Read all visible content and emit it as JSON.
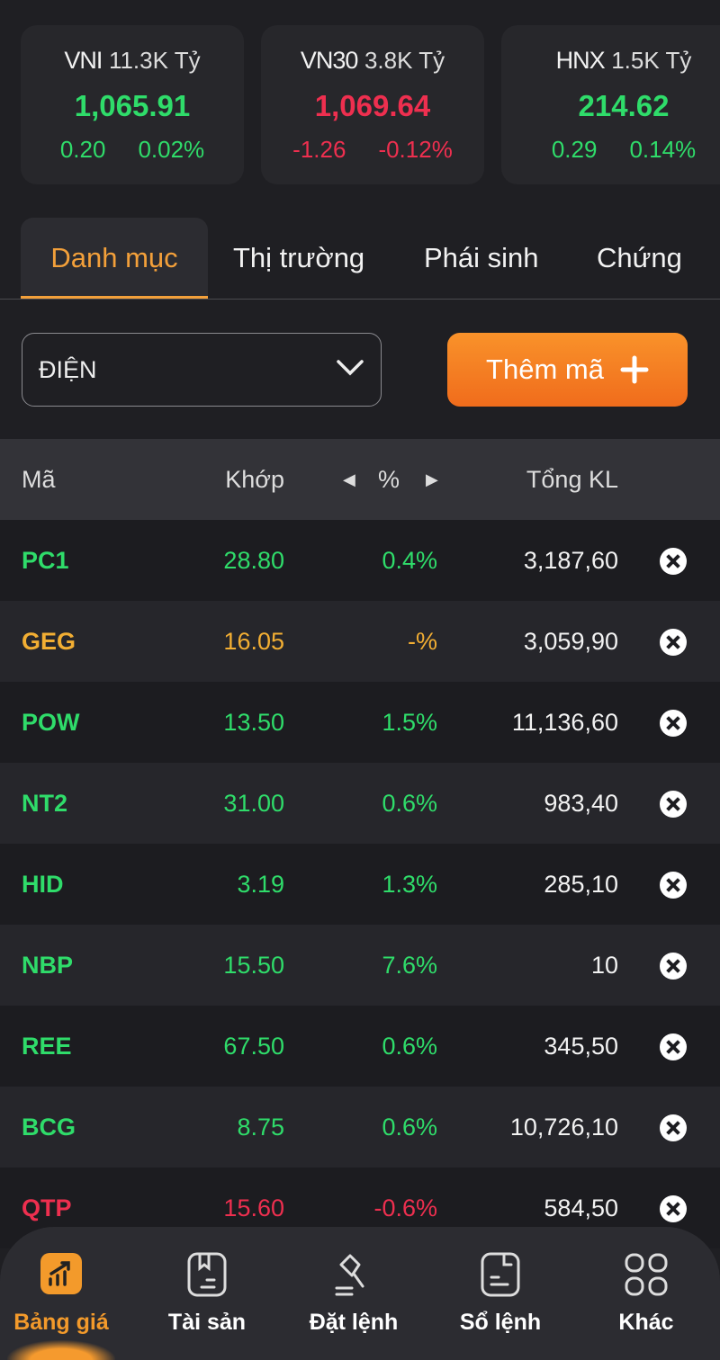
{
  "indices": [
    {
      "name": "VNI",
      "volume": "11.3K Tỷ",
      "value": "1,065.91",
      "change": "0.20",
      "percent": "0.02%",
      "trend": "up"
    },
    {
      "name": "VN30",
      "volume": "3.8K Tỷ",
      "value": "1,069.64",
      "change": "-1.26",
      "percent": "-0.12%",
      "trend": "down"
    },
    {
      "name": "HNX",
      "volume": "1.5K Tỷ",
      "value": "214.62",
      "change": "0.29",
      "percent": "0.14%",
      "trend": "up"
    }
  ],
  "tabs": [
    "Danh mục",
    "Thị trường",
    "Phái sinh",
    "Chứng"
  ],
  "watchlist_select": "ĐIỆN",
  "add_button": "Thêm mã",
  "table": {
    "headers": {
      "code": "Mã",
      "match": "Khớp",
      "percent": "%",
      "volume": "Tổng KL"
    },
    "rows": [
      {
        "code": "PC1",
        "match": "28.80",
        "percent": "0.4%",
        "volume": "3,187,60",
        "trend": "up"
      },
      {
        "code": "GEG",
        "match": "16.05",
        "percent": "-%",
        "volume": "3,059,90",
        "trend": "ref"
      },
      {
        "code": "POW",
        "match": "13.50",
        "percent": "1.5%",
        "volume": "11,136,60",
        "trend": "up"
      },
      {
        "code": "NT2",
        "match": "31.00",
        "percent": "0.6%",
        "volume": "983,40",
        "trend": "up"
      },
      {
        "code": "HID",
        "match": "3.19",
        "percent": "1.3%",
        "volume": "285,10",
        "trend": "up"
      },
      {
        "code": "NBP",
        "match": "15.50",
        "percent": "7.6%",
        "volume": "10",
        "trend": "up"
      },
      {
        "code": "REE",
        "match": "67.50",
        "percent": "0.6%",
        "volume": "345,50",
        "trend": "up"
      },
      {
        "code": "BCG",
        "match": "8.75",
        "percent": "0.6%",
        "volume": "10,726,10",
        "trend": "up"
      },
      {
        "code": "QTP",
        "match": "15.60",
        "percent": "-0.6%",
        "volume": "584,50",
        "trend": "down"
      }
    ]
  },
  "nav": [
    "Bảng giá",
    "Tài sản",
    "Đặt lệnh",
    "Sổ lệnh",
    "Khác"
  ],
  "colors": {
    "up": "#2fdc6a",
    "down": "#ee2f4f",
    "ref": "#f2ae33",
    "accent": "#f39a2b"
  }
}
